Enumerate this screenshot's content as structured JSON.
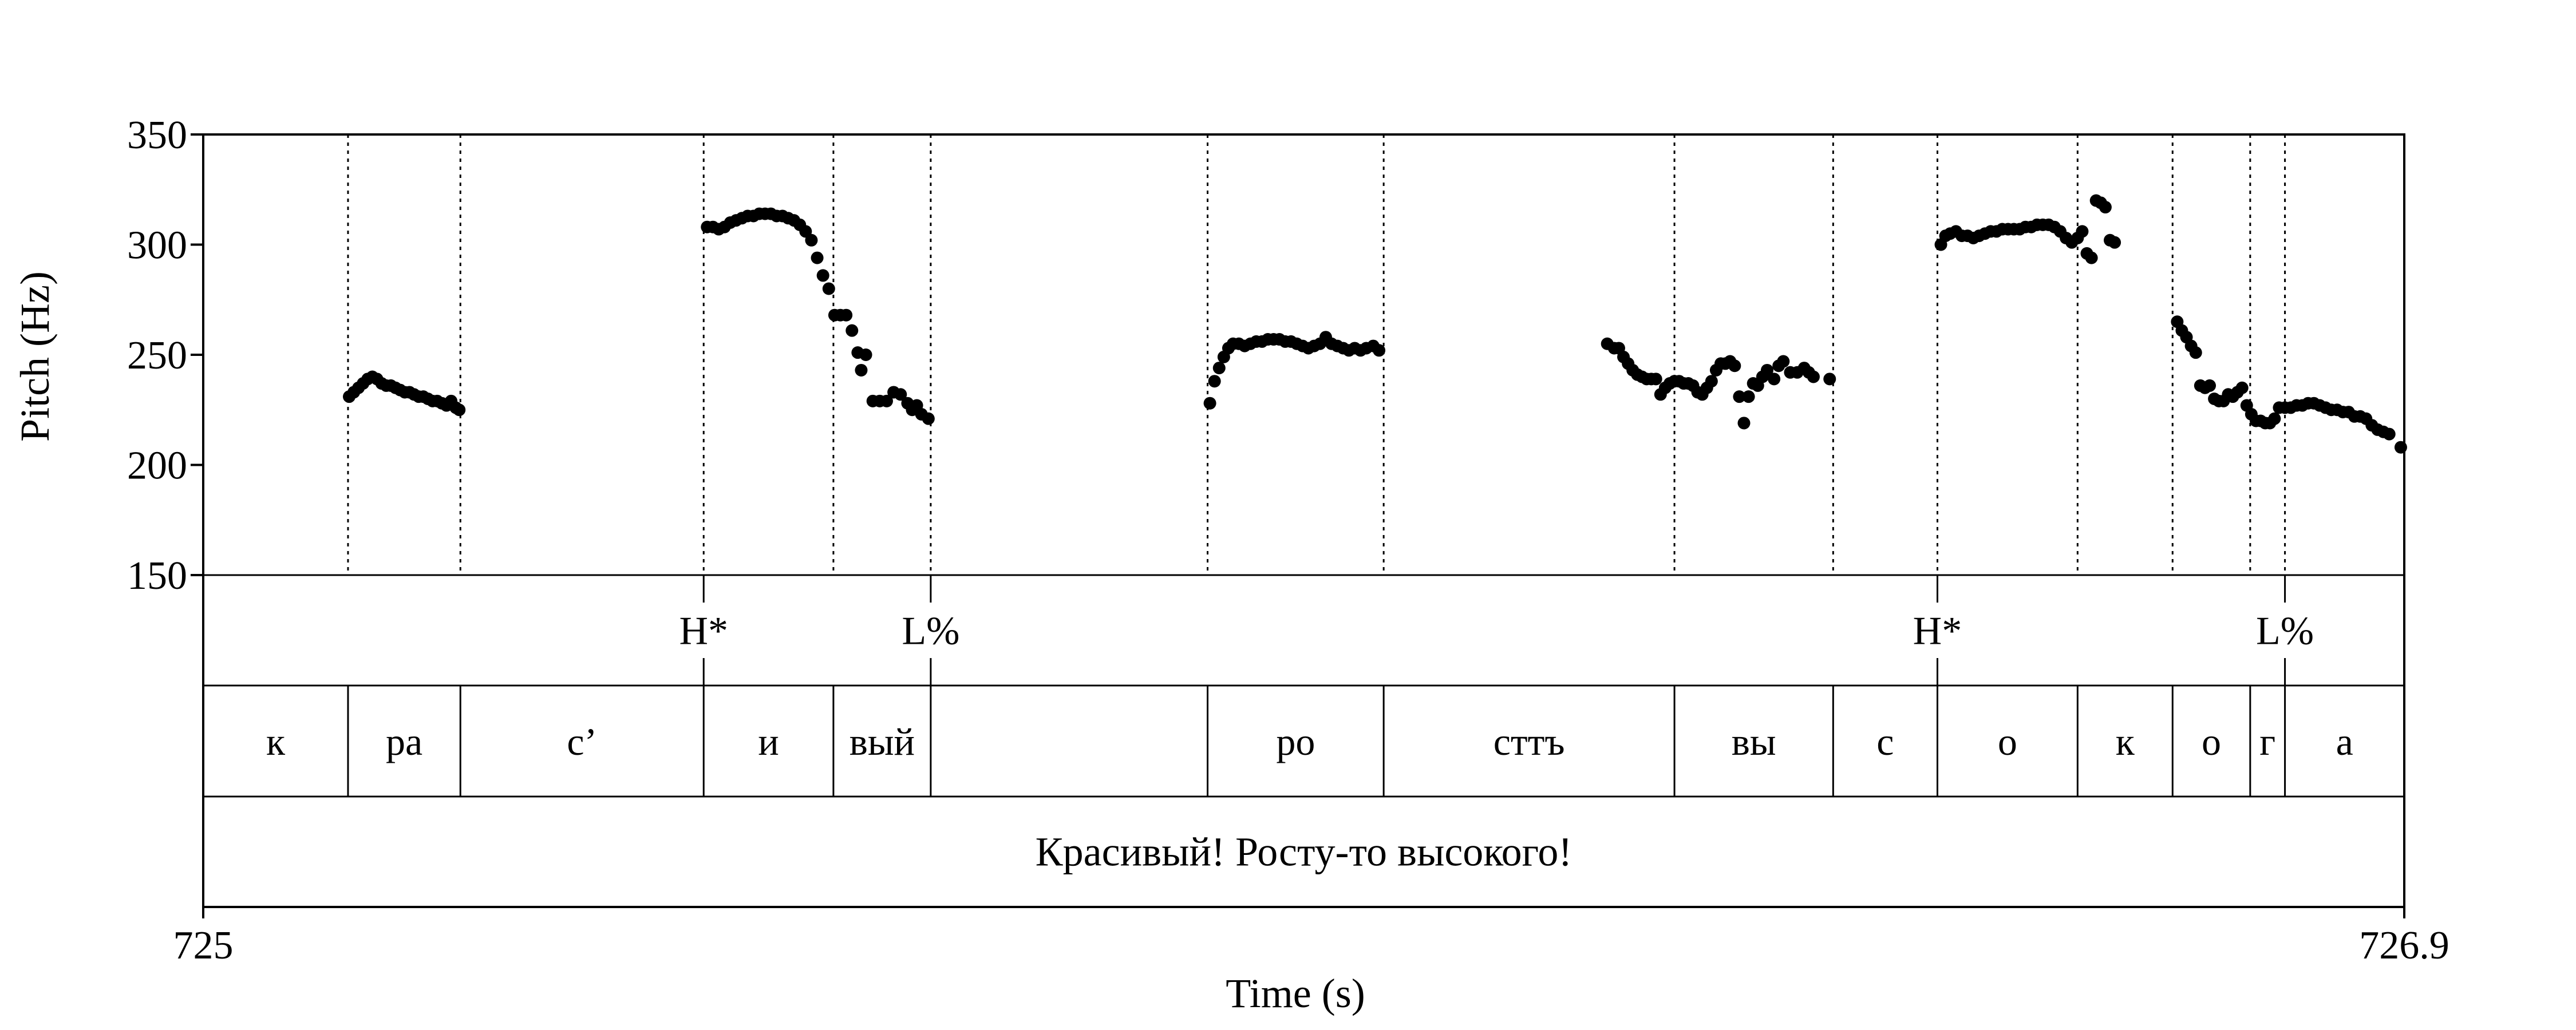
{
  "chart_data": {
    "type": "scatter",
    "xlabel": "Time (s)",
    "ylabel": "Pitch (Hz)",
    "xlim": [
      725,
      726.9
    ],
    "ylim": [
      150,
      350
    ],
    "x_tick_labels": [
      "725",
      "726.9"
    ],
    "y_ticks": [
      150,
      200,
      250,
      300,
      350
    ],
    "boundaries": [
      725.125,
      725.222,
      725.432,
      725.544,
      725.628,
      725.867,
      726.019,
      726.27,
      726.407,
      726.497,
      726.618,
      726.7,
      726.767,
      726.797
    ],
    "tone_tier": [
      {
        "t": 725.432,
        "label": "H*"
      },
      {
        "t": 725.628,
        "label": "L%"
      },
      {
        "t": 726.497,
        "label": "H*"
      },
      {
        "t": 726.797,
        "label": "L%"
      }
    ],
    "segment_tier": [
      {
        "start": 725.0,
        "end": 725.125,
        "label": "к"
      },
      {
        "start": 725.125,
        "end": 725.222,
        "label": "ра"
      },
      {
        "start": 725.222,
        "end": 725.432,
        "label": "с’"
      },
      {
        "start": 725.432,
        "end": 725.544,
        "label": "и"
      },
      {
        "start": 725.544,
        "end": 725.628,
        "label": "вый"
      },
      {
        "start": 725.628,
        "end": 725.867,
        "label": ""
      },
      {
        "start": 725.867,
        "end": 726.019,
        "label": "ро"
      },
      {
        "start": 726.019,
        "end": 726.27,
        "label": "сттъ"
      },
      {
        "start": 726.27,
        "end": 726.407,
        "label": "вы"
      },
      {
        "start": 726.407,
        "end": 726.497,
        "label": "с"
      },
      {
        "start": 726.497,
        "end": 726.618,
        "label": "о"
      },
      {
        "start": 726.618,
        "end": 726.7,
        "label": "к"
      },
      {
        "start": 726.7,
        "end": 726.767,
        "label": "о"
      },
      {
        "start": 726.767,
        "end": 726.797,
        "label": "г"
      },
      {
        "start": 726.797,
        "end": 726.9,
        "label": "а"
      }
    ],
    "sentence_tier": {
      "start": 725.0,
      "end": 726.9,
      "label": "Красивый! Росту-то высокого!"
    },
    "pitch_segments": [
      [
        [
          725.126,
          231
        ],
        [
          725.13,
          233
        ],
        [
          725.134,
          235
        ],
        [
          725.138,
          237
        ],
        [
          725.142,
          239
        ],
        [
          725.146,
          240
        ],
        [
          725.15,
          239
        ],
        [
          725.154,
          237
        ],
        [
          725.158,
          236
        ],
        [
          725.162,
          236
        ],
        [
          725.166,
          235
        ],
        [
          725.17,
          234
        ],
        [
          725.174,
          233
        ],
        [
          725.178,
          233
        ],
        [
          725.182,
          232
        ],
        [
          725.186,
          231
        ],
        [
          725.19,
          231
        ],
        [
          725.194,
          230
        ],
        [
          725.198,
          229
        ],
        [
          725.202,
          229
        ],
        [
          725.206,
          228
        ],
        [
          725.21,
          227
        ],
        [
          725.214,
          229
        ],
        [
          725.218,
          226
        ],
        [
          725.221,
          225
        ]
      ],
      [
        [
          725.435,
          308
        ],
        [
          725.44,
          308
        ],
        [
          725.445,
          307
        ],
        [
          725.45,
          308
        ],
        [
          725.455,
          310
        ],
        [
          725.46,
          311
        ],
        [
          725.465,
          312
        ],
        [
          725.47,
          313
        ],
        [
          725.475,
          313
        ],
        [
          725.48,
          314
        ],
        [
          725.485,
          314
        ],
        [
          725.49,
          314
        ],
        [
          725.495,
          313
        ],
        [
          725.5,
          313
        ],
        [
          725.505,
          312
        ],
        [
          725.51,
          311
        ],
        [
          725.515,
          309
        ],
        [
          725.52,
          306
        ],
        [
          725.525,
          302
        ],
        [
          725.53,
          294
        ],
        [
          725.535,
          286
        ],
        [
          725.54,
          280
        ],
        [
          725.545,
          268
        ],
        [
          725.55,
          268
        ],
        [
          725.555,
          268
        ],
        [
          725.56,
          261
        ],
        [
          725.565,
          251
        ],
        [
          725.568,
          243
        ],
        [
          725.572,
          250
        ],
        [
          725.578,
          229
        ],
        [
          725.584,
          229
        ],
        [
          725.59,
          229
        ],
        [
          725.596,
          233
        ],
        [
          725.602,
          232
        ],
        [
          725.608,
          228
        ],
        [
          725.612,
          225
        ],
        [
          725.616,
          227
        ],
        [
          725.62,
          223
        ],
        [
          725.626,
          221
        ]
      ],
      [
        [
          725.869,
          228
        ],
        [
          725.873,
          238
        ],
        [
          725.877,
          244
        ],
        [
          725.881,
          249
        ],
        [
          725.885,
          253
        ],
        [
          725.889,
          255
        ],
        [
          725.894,
          255
        ],
        [
          725.899,
          254
        ],
        [
          725.904,
          255
        ],
        [
          725.909,
          256
        ],
        [
          725.914,
          256
        ],
        [
          725.919,
          257
        ],
        [
          725.924,
          257
        ],
        [
          725.929,
          257
        ],
        [
          725.934,
          256
        ],
        [
          725.939,
          256
        ],
        [
          725.944,
          255
        ],
        [
          725.949,
          254
        ],
        [
          725.954,
          253
        ],
        [
          725.959,
          254
        ],
        [
          725.964,
          255
        ],
        [
          725.969,
          258
        ],
        [
          725.974,
          255
        ],
        [
          725.979,
          254
        ],
        [
          725.984,
          253
        ],
        [
          725.989,
          252
        ],
        [
          725.994,
          253
        ],
        [
          725.999,
          252
        ],
        [
          726.004,
          253
        ],
        [
          726.01,
          254
        ],
        [
          726.015,
          252
        ]
      ],
      [
        [
          726.212,
          255
        ],
        [
          726.218,
          253
        ],
        [
          726.222,
          253
        ],
        [
          726.226,
          249
        ],
        [
          726.23,
          246
        ],
        [
          726.234,
          243
        ],
        [
          726.238,
          241
        ],
        [
          726.242,
          240
        ],
        [
          726.246,
          239
        ],
        [
          726.25,
          239
        ],
        [
          726.254,
          239
        ],
        [
          726.258,
          232
        ],
        [
          726.262,
          235
        ],
        [
          726.266,
          237
        ],
        [
          726.27,
          238
        ],
        [
          726.274,
          238
        ],
        [
          726.278,
          237
        ],
        [
          726.282,
          237
        ],
        [
          726.286,
          236
        ],
        [
          726.29,
          233
        ],
        [
          726.294,
          232
        ],
        [
          726.298,
          235
        ],
        [
          726.302,
          238
        ],
        [
          726.306,
          243
        ],
        [
          726.31,
          246
        ],
        [
          726.314,
          246
        ],
        [
          726.318,
          247
        ],
        [
          726.322,
          245
        ],
        [
          726.326,
          231
        ],
        [
          726.33,
          219
        ],
        [
          726.334,
          231
        ],
        [
          726.338,
          237
        ],
        [
          726.342,
          236
        ],
        [
          726.346,
          240
        ],
        [
          726.35,
          243
        ],
        [
          726.356,
          239
        ],
        [
          726.36,
          245
        ],
        [
          726.364,
          247
        ],
        [
          726.37,
          242
        ],
        [
          726.376,
          242
        ],
        [
          726.382,
          244
        ],
        [
          726.386,
          242
        ],
        [
          726.39,
          240
        ],
        [
          726.404,
          239
        ]
      ],
      [
        [
          726.5,
          300
        ],
        [
          726.504,
          304
        ],
        [
          726.508,
          305
        ],
        [
          726.513,
          306
        ],
        [
          726.518,
          304
        ],
        [
          726.523,
          304
        ],
        [
          726.528,
          303
        ],
        [
          726.533,
          304
        ],
        [
          726.538,
          305
        ],
        [
          726.543,
          306
        ],
        [
          726.548,
          306
        ],
        [
          726.553,
          307
        ],
        [
          726.558,
          307
        ],
        [
          726.563,
          307
        ],
        [
          726.568,
          307
        ],
        [
          726.573,
          308
        ],
        [
          726.578,
          308
        ],
        [
          726.583,
          309
        ],
        [
          726.588,
          309
        ],
        [
          726.593,
          309
        ],
        [
          726.598,
          308
        ],
        [
          726.603,
          306
        ],
        [
          726.608,
          303
        ],
        [
          726.613,
          301
        ],
        [
          726.618,
          303
        ],
        [
          726.622,
          306
        ],
        [
          726.626,
          296
        ],
        [
          726.63,
          294
        ],
        [
          726.634,
          320
        ],
        [
          726.638,
          319
        ],
        [
          726.642,
          317
        ],
        [
          726.646,
          302
        ],
        [
          726.65,
          301
        ]
      ],
      [
        [
          726.704,
          265
        ],
        [
          726.708,
          261
        ],
        [
          726.712,
          258
        ],
        [
          726.716,
          254
        ],
        [
          726.72,
          251
        ],
        [
          726.724,
          236
        ],
        [
          726.728,
          235
        ],
        [
          726.732,
          236
        ],
        [
          726.736,
          230
        ],
        [
          726.74,
          229
        ],
        [
          726.744,
          229
        ],
        [
          726.748,
          232
        ],
        [
          726.752,
          231
        ],
        [
          726.756,
          233
        ],
        [
          726.76,
          235
        ],
        [
          726.764,
          227
        ],
        [
          726.768,
          223
        ],
        [
          726.772,
          220
        ],
        [
          726.776,
          220
        ],
        [
          726.78,
          219
        ],
        [
          726.784,
          219
        ],
        [
          726.788,
          221
        ],
        [
          726.792,
          226
        ],
        [
          726.797,
          226
        ],
        [
          726.802,
          226
        ],
        [
          726.807,
          227
        ],
        [
          726.812,
          227
        ],
        [
          726.817,
          228
        ],
        [
          726.822,
          228
        ],
        [
          726.827,
          227
        ],
        [
          726.832,
          226
        ],
        [
          726.837,
          225
        ],
        [
          726.842,
          225
        ],
        [
          726.847,
          224
        ],
        [
          726.852,
          224
        ],
        [
          726.857,
          222
        ],
        [
          726.862,
          222
        ],
        [
          726.867,
          221
        ],
        [
          726.872,
          218
        ],
        [
          726.877,
          216
        ],
        [
          726.882,
          215
        ],
        [
          726.887,
          214
        ],
        [
          726.897,
          208
        ]
      ]
    ]
  }
}
